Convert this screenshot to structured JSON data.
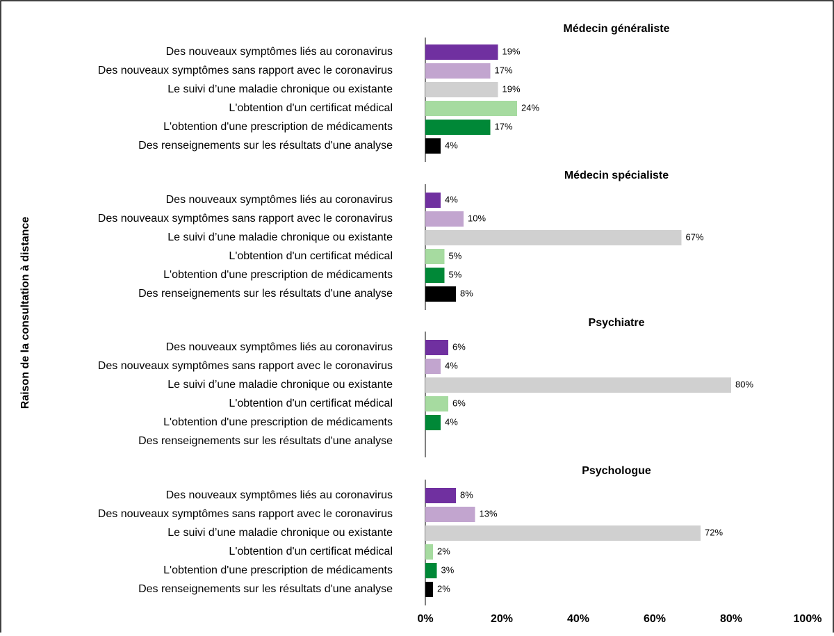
{
  "chart_data": [
    {
      "type": "bar",
      "orientation": "horizontal",
      "title": "Médecin généraliste",
      "ylabel": "Raison de la consultation à distance",
      "categories": [
        "Des nouveaux symptômes liés au coronavirus",
        "Des nouveaux symptômes sans rapport avec le coronavirus",
        "Le suivi d’une maladie chronique ou existante",
        "L'obtention d'un certificat médical",
        "L'obtention d'une prescription de médicaments",
        "Des renseignements sur les résultats d'une analyse"
      ],
      "values": [
        19,
        17,
        19,
        24,
        17,
        4
      ],
      "value_labels": [
        "19%",
        "17%",
        "19%",
        "24%",
        "17%",
        "4%"
      ],
      "colors": [
        "#7030a0",
        "#c2a5cf",
        "#d0d0d0",
        "#a6dba0",
        "#008837",
        "#000000"
      ]
    },
    {
      "type": "bar",
      "orientation": "horizontal",
      "title": "Médecin spécialiste",
      "categories": [
        "Des nouveaux symptômes liés au coronavirus",
        "Des nouveaux symptômes sans rapport avec le coronavirus",
        "Le suivi d’une maladie chronique ou existante",
        "L'obtention d'un certificat médical",
        "L'obtention d'une prescription de médicaments",
        "Des renseignements sur les résultats d'une analyse"
      ],
      "values": [
        4,
        10,
        67,
        5,
        5,
        8
      ],
      "value_labels": [
        "4%",
        "10%",
        "67%",
        "5%",
        "5%",
        "8%"
      ],
      "colors": [
        "#7030a0",
        "#c2a5cf",
        "#d0d0d0",
        "#a6dba0",
        "#008837",
        "#000000"
      ]
    },
    {
      "type": "bar",
      "orientation": "horizontal",
      "title": "Psychiatre",
      "categories": [
        "Des nouveaux symptômes liés au coronavirus",
        "Des nouveaux symptômes sans rapport avec le coronavirus",
        "Le suivi d’une maladie chronique ou existante",
        "L'obtention d'un certificat médical",
        "L'obtention d'une prescription de médicaments",
        "Des renseignements sur les résultats d'une analyse"
      ],
      "values": [
        6,
        4,
        80,
        6,
        4,
        null
      ],
      "value_labels": [
        "6%",
        "4%",
        "80%",
        "6%",
        "4%",
        null
      ],
      "colors": [
        "#7030a0",
        "#c2a5cf",
        "#d0d0d0",
        "#a6dba0",
        "#008837",
        "#000000"
      ]
    },
    {
      "type": "bar",
      "orientation": "horizontal",
      "title": "Psychologue",
      "categories": [
        "Des nouveaux symptômes liés au coronavirus",
        "Des nouveaux symptômes sans rapport avec le coronavirus",
        "Le suivi d’une maladie chronique ou existante",
        "L'obtention d'un certificat médical",
        "L'obtention d'une prescription de médicaments",
        "Des renseignements sur les résultats d'une analyse"
      ],
      "values": [
        8,
        13,
        72,
        2,
        3,
        2
      ],
      "value_labels": [
        "8%",
        "13%",
        "72%",
        "2%",
        "3%",
        "2%"
      ],
      "colors": [
        "#7030a0",
        "#c2a5cf",
        "#d0d0d0",
        "#a6dba0",
        "#008837",
        "#000000"
      ],
      "xlim": [
        0,
        100
      ],
      "xticks": [
        {
          "value": 0,
          "label": "0%"
        },
        {
          "value": 20,
          "label": "20%"
        },
        {
          "value": 40,
          "label": "40%"
        },
        {
          "value": 60,
          "label": "60%"
        },
        {
          "value": 80,
          "label": "80%"
        },
        {
          "value": 100,
          "label": "100%"
        }
      ]
    }
  ]
}
